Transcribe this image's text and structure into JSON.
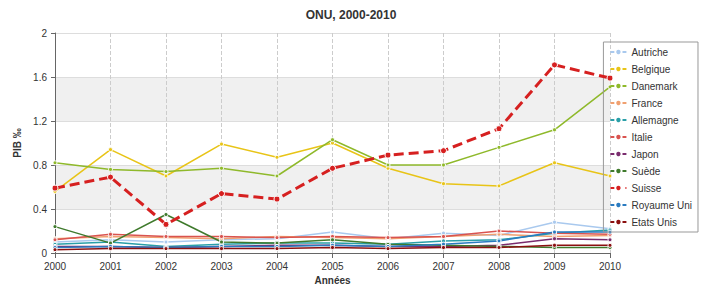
{
  "chart_data": {
    "type": "line",
    "title": "ONU, 2000-2010",
    "x_label": "Années",
    "y_label": "PIB ‰",
    "categories": [
      "2000",
      "2001",
      "2002",
      "2003",
      "2004",
      "2005",
      "2006",
      "2007",
      "2008",
      "2009",
      "2010"
    ],
    "ylim": [
      0,
      2
    ],
    "yticks": [
      0,
      0.4,
      0.8,
      1.2,
      1.6,
      2
    ],
    "grid": true,
    "legend": "right",
    "marker": "circle",
    "series": [
      {
        "name": "Autriche",
        "color": "#a9c9ee",
        "line_style": "solid",
        "values": [
          0.1,
          0.12,
          0.1,
          0.12,
          0.13,
          0.19,
          0.13,
          0.18,
          0.16,
          0.28,
          0.22
        ]
      },
      {
        "name": "Belgique",
        "color": "#e8c417",
        "line_style": "solid",
        "values": [
          0.56,
          0.94,
          0.7,
          0.99,
          0.87,
          1.0,
          0.77,
          0.63,
          0.61,
          0.82,
          0.7
        ]
      },
      {
        "name": "Danemark",
        "color": "#8fb92b",
        "line_style": "solid",
        "values": [
          0.82,
          0.76,
          0.74,
          0.77,
          0.7,
          1.03,
          0.8,
          0.8,
          0.96,
          1.12,
          1.51
        ]
      },
      {
        "name": "France",
        "color": "#f0a070",
        "line_style": "solid",
        "values": [
          0.13,
          0.15,
          0.14,
          0.13,
          0.15,
          0.14,
          0.13,
          0.15,
          0.17,
          0.15,
          0.16
        ]
      },
      {
        "name": "Allemagne",
        "color": "#2a9fa8",
        "line_style": "solid",
        "values": [
          0.08,
          0.1,
          0.06,
          0.08,
          0.09,
          0.09,
          0.08,
          0.11,
          0.12,
          0.18,
          0.21
        ]
      },
      {
        "name": "Italie",
        "color": "#d9534f",
        "line_style": "solid",
        "values": [
          0.12,
          0.17,
          0.15,
          0.15,
          0.14,
          0.15,
          0.14,
          0.15,
          0.2,
          0.18,
          0.17
        ]
      },
      {
        "name": "Japon",
        "color": "#7a2c6e",
        "line_style": "solid",
        "values": [
          0.06,
          0.06,
          0.05,
          0.06,
          0.07,
          0.07,
          0.06,
          0.06,
          0.07,
          0.13,
          0.12
        ]
      },
      {
        "name": "Suède",
        "color": "#3f7a2c",
        "line_style": "solid",
        "values": [
          0.24,
          0.09,
          0.35,
          0.1,
          0.09,
          0.12,
          0.08,
          0.07,
          0.06,
          0.05,
          0.05
        ]
      },
      {
        "name": "Suisse",
        "color": "#d62020",
        "line_style": "dashed",
        "values": [
          0.59,
          0.69,
          0.26,
          0.54,
          0.49,
          0.77,
          0.89,
          0.93,
          1.13,
          1.71,
          1.59
        ]
      },
      {
        "name": "Royaume Uni",
        "color": "#2a7bc0",
        "line_style": "solid",
        "values": [
          0.05,
          0.06,
          0.05,
          0.06,
          0.06,
          0.07,
          0.06,
          0.08,
          0.11,
          0.19,
          0.19
        ]
      },
      {
        "name": "Etats Unis",
        "color": "#8b1010",
        "line_style": "solid",
        "values": [
          0.03,
          0.04,
          0.04,
          0.04,
          0.04,
          0.05,
          0.04,
          0.05,
          0.05,
          0.07,
          0.07
        ]
      }
    ]
  }
}
